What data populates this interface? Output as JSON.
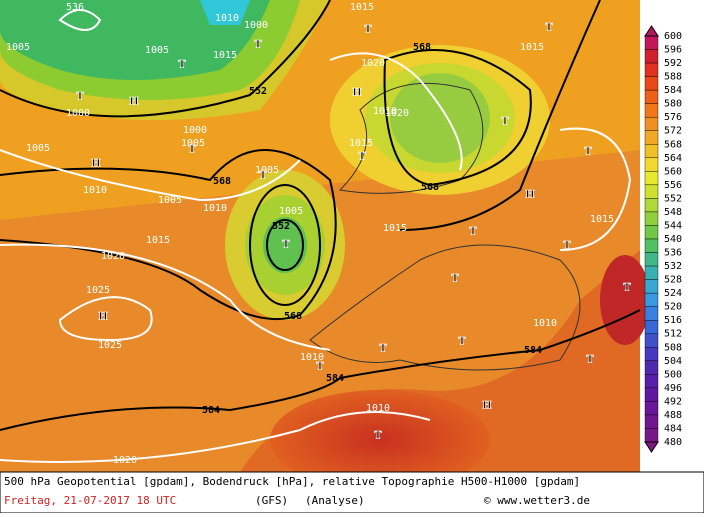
{
  "map": {
    "labels": [
      "536",
      "1005",
      "1000",
      "1005",
      "1010",
      "1005",
      "1010",
      "1015",
      "1020",
      "1025",
      "1025",
      "1020",
      "552",
      "568",
      "552",
      "1005",
      "1005",
      "568",
      "1010",
      "584",
      "584",
      "1010",
      "568",
      "1020",
      "1010",
      "1020",
      "1015",
      "568",
      "1015",
      "1015",
      "1015",
      "1010",
      "584",
      "1010",
      "1000",
      "1005",
      "1015",
      "1000",
      "1005",
      "1015"
    ],
    "highs": [
      "H",
      "H",
      "H",
      "H",
      "H",
      "H"
    ],
    "lows": [
      "T",
      "T",
      "T",
      "T",
      "T",
      "T",
      "T",
      "T",
      "T",
      "T",
      "T",
      "T",
      "T",
      "T",
      "T",
      "T",
      "T",
      "T",
      "T",
      "T"
    ]
  },
  "colorbar": {
    "labels": [
      600,
      596,
      592,
      588,
      584,
      580,
      576,
      572,
      568,
      564,
      560,
      556,
      552,
      548,
      544,
      540,
      536,
      532,
      528,
      524,
      520,
      516,
      512,
      508,
      504,
      500,
      496,
      492,
      488,
      484,
      480
    ]
  },
  "caption": {
    "line1": "500 hPa Geopotential [gpdam], Bodendruck [hPa], relative Topographie H500-H1000 [gpdam]",
    "date": "Freitag, 21-07-2017   18 UTC",
    "model": "(GFS)",
    "run": "(Analyse)",
    "credit": "© www.wetter3.de"
  }
}
